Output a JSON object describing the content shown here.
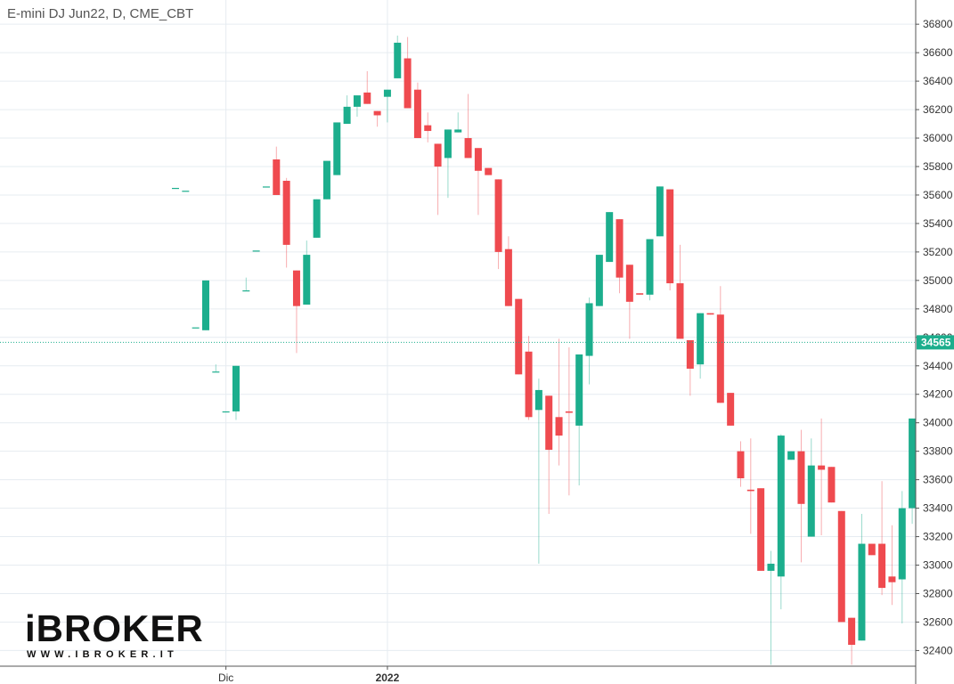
{
  "chart_data": {
    "type": "candlestick",
    "title": "E-mini DJ Jun22, D, CME_CBT",
    "categories": [
      null,
      null,
      null,
      null,
      null,
      "Dic",
      null,
      null,
      null,
      null,
      null,
      null,
      null,
      null,
      null,
      null,
      null,
      null,
      null,
      null,
      null,
      "2022",
      null,
      null,
      null,
      null,
      null,
      null,
      null,
      null,
      null,
      null,
      null,
      null,
      null,
      null,
      null,
      null,
      null,
      null,
      null,
      null,
      null,
      null,
      null,
      null,
      null,
      null,
      null,
      null,
      null,
      null,
      null,
      null,
      null,
      null,
      null,
      null,
      null,
      null,
      null,
      null,
      null,
      null,
      null,
      null,
      null,
      null,
      null,
      null,
      null,
      null,
      null,
      null
    ],
    "open": [
      35650,
      35630,
      34670,
      34650,
      34360,
      34080,
      34080,
      34930,
      35210,
      35660,
      35850,
      35700,
      35070,
      34830,
      35300,
      35570,
      35740,
      36100,
      36220,
      36320,
      36190,
      36290,
      36420,
      36560,
      36340,
      36090,
      35960,
      35860,
      36040,
      36000,
      35930,
      35790,
      35710,
      35220,
      34870,
      34500,
      34090,
      34190,
      34040,
      34080,
      33980,
      34470,
      34820,
      35130,
      35430,
      35110,
      34910,
      34900,
      35310,
      35640,
      34980,
      34580,
      34410,
      34770,
      34760,
      34210,
      33800,
      33530,
      33540,
      32960,
      32920,
      33740,
      33800,
      33200,
      33700,
      33690,
      33380,
      32630,
      32470,
      33150,
      33150,
      32920,
      32900,
      33400
    ],
    "high": [
      35650,
      35630,
      34670,
      35000,
      34410,
      34080,
      34400,
      35020,
      35210,
      35660,
      35940,
      35720,
      35070,
      35280,
      35570,
      35840,
      36110,
      36300,
      36300,
      36470,
      36190,
      36340,
      36720,
      36710,
      36390,
      36180,
      35960,
      36060,
      36180,
      36310,
      35930,
      35790,
      35710,
      35310,
      34870,
      34610,
      34310,
      34190,
      34590,
      34530,
      34480,
      34880,
      35180,
      35480,
      35430,
      35110,
      34910,
      35290,
      35660,
      35640,
      35250,
      34580,
      34770,
      34770,
      34960,
      34210,
      33870,
      33890,
      33540,
      33100,
      33920,
      33800,
      33950,
      33890,
      34030,
      33690,
      33380,
      32630,
      33360,
      33150,
      33590,
      33280,
      33520,
      34030
    ],
    "low": [
      35650,
      35630,
      34670,
      34650,
      34360,
      34080,
      34020,
      34930,
      35210,
      35660,
      35600,
      35090,
      34490,
      34830,
      35300,
      35570,
      35740,
      36100,
      36150,
      36240,
      36080,
      36110,
      36420,
      36210,
      36000,
      35970,
      35460,
      35580,
      36040,
      35860,
      35460,
      35740,
      35080,
      34820,
      34340,
      34020,
      33010,
      33360,
      33700,
      33490,
      33560,
      34270,
      34820,
      35130,
      34910,
      34590,
      34900,
      34860,
      35310,
      34930,
      34590,
      34190,
      34310,
      34760,
      34140,
      33980,
      33550,
      33220,
      32960,
      32300,
      32690,
      33740,
      33020,
      33200,
      33210,
      33440,
      32600,
      32300,
      32470,
      33070,
      32790,
      32720,
      32590,
      33290
    ],
    "close": [
      35650,
      35630,
      34670,
      35000,
      34360,
      34080,
      34400,
      34930,
      35210,
      35660,
      35600,
      35250,
      34820,
      35180,
      35570,
      35840,
      36110,
      36220,
      36300,
      36240,
      36160,
      36340,
      36670,
      36210,
      36000,
      36050,
      35800,
      36060,
      36060,
      35860,
      35770,
      35740,
      35200,
      34820,
      34340,
      34040,
      34230,
      33810,
      33910,
      34070,
      34480,
      34840,
      35180,
      35480,
      35020,
      34850,
      34900,
      35290,
      35660,
      34980,
      34590,
      34380,
      34770,
      34760,
      34140,
      33980,
      33610,
      33520,
      32960,
      33010,
      33910,
      33800,
      33430,
      33700,
      33670,
      33440,
      32600,
      32440,
      33150,
      33070,
      32840,
      32880,
      33400,
      34030
    ],
    "up_color": "#1cae8d",
    "down_color": "#ef4a4f",
    "ylim": [
      32290,
      36970
    ],
    "yticks": [
      32400,
      32600,
      32800,
      33000,
      33200,
      33400,
      33600,
      33800,
      34000,
      34200,
      34400,
      34600,
      34800,
      35000,
      35200,
      35400,
      35600,
      35800,
      36000,
      36200,
      36400,
      36600,
      36800
    ],
    "grid": true,
    "last_price": 34565,
    "logo": {
      "name": "iBROKER",
      "url": "WWW.IBROKER.IT"
    }
  }
}
